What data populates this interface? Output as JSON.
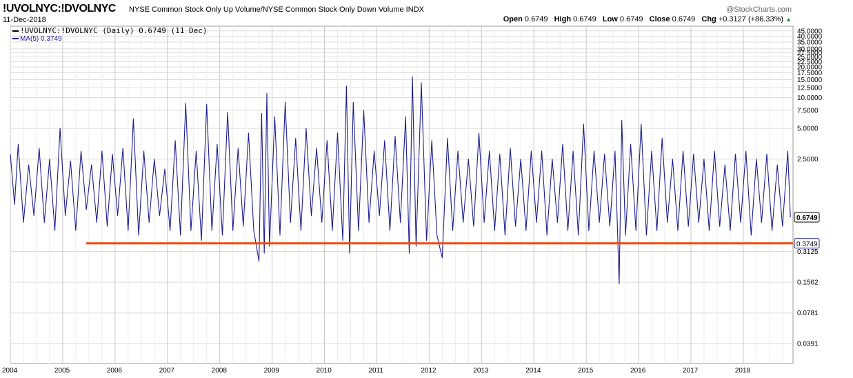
{
  "header": {
    "symbol": "!UVOLNYC:!DVOLNYC",
    "description": "NYSE Common Stock Only Up Volume/NYSE Common Stock Only Down Volume  INDX",
    "brand": "@StockCharts.com",
    "date": "11-Dec-2018",
    "open_label": "Open",
    "open": "0.6749",
    "high_label": "High",
    "high": "0.6749",
    "low_label": "Low",
    "low": "0.6749",
    "close_label": "Close",
    "close": "0.6749",
    "chg_label": "Chg",
    "chg": "+0.3127 (+86.33%)",
    "chg_arrow": "▲"
  },
  "legend": {
    "series": "!UVOLNYC:!DVOLNYC (Daily) 0.6749 (11 Dec)",
    "ma": "MA(5) 0.3749"
  },
  "colors": {
    "series": "#1c1c8f",
    "hline": "#ff4500",
    "grid": "#dcdcdc",
    "ma_tag": "#1c1c8f"
  },
  "chart_data": {
    "type": "line",
    "yscale": "log",
    "ylim": [
      0.025,
      50
    ],
    "xlim": [
      2004,
      2018.95
    ],
    "x_tick_labels": [
      "2004",
      "2005",
      "2006",
      "2007",
      "2008",
      "2009",
      "2010",
      "2011",
      "2012",
      "2013",
      "2014",
      "2015",
      "2016",
      "2017",
      "2018"
    ],
    "y_tick_labels": [
      {
        "label": "45.0000",
        "v": 45
      },
      {
        "label": "40.0000",
        "v": 40
      },
      {
        "label": "35.0000",
        "v": 35
      },
      {
        "label": "30.0000",
        "v": 30
      },
      {
        "label": "27.5000",
        "v": 27.5
      },
      {
        "label": "25.0000",
        "v": 25
      },
      {
        "label": "22.5000",
        "v": 22.5
      },
      {
        "label": "20.0000",
        "v": 20
      },
      {
        "label": "17.5000",
        "v": 17.5
      },
      {
        "label": "15.0000",
        "v": 15
      },
      {
        "label": "12.5000",
        "v": 12.5
      },
      {
        "label": "10.0000",
        "v": 10
      },
      {
        "label": "7.5000",
        "v": 7.5
      },
      {
        "label": "5.0000",
        "v": 5
      },
      {
        "label": "2.5000",
        "v": 2.5
      },
      {
        "label": "0.3125",
        "v": 0.3125
      },
      {
        "label": "0.1562",
        "v": 0.1562
      },
      {
        "label": "0.0781",
        "v": 0.0781
      },
      {
        "label": "0.0391",
        "v": 0.0391
      }
    ],
    "last_value_label": "0.6749",
    "last_value": 0.6749,
    "ma_value_label": "0.3749",
    "ma_value": 0.3749,
    "horizontal_line": {
      "y": 0.375,
      "x_start": 2005.45,
      "x_end": 2018.95
    },
    "series": [
      {
        "name": "!UVOLNYC:!DVOLNYC (Daily)",
        "points": [
          [
            2004.0,
            2.8
          ],
          [
            2004.08,
            0.9
          ],
          [
            2004.15,
            3.5
          ],
          [
            2004.25,
            0.6
          ],
          [
            2004.35,
            2.2
          ],
          [
            2004.45,
            0.7
          ],
          [
            2004.55,
            3.2
          ],
          [
            2004.65,
            0.6
          ],
          [
            2004.75,
            2.5
          ],
          [
            2004.85,
            0.5
          ],
          [
            2004.95,
            5.0
          ],
          [
            2005.05,
            0.7
          ],
          [
            2005.15,
            2.4
          ],
          [
            2005.25,
            0.5
          ],
          [
            2005.35,
            3.0
          ],
          [
            2005.45,
            0.8
          ],
          [
            2005.55,
            2.2
          ],
          [
            2005.65,
            0.6
          ],
          [
            2005.75,
            3.0
          ],
          [
            2005.85,
            0.55
          ],
          [
            2005.95,
            2.8
          ],
          [
            2006.05,
            0.7
          ],
          [
            2006.15,
            3.2
          ],
          [
            2006.25,
            0.5
          ],
          [
            2006.35,
            6.2
          ],
          [
            2006.45,
            0.45
          ],
          [
            2006.55,
            3.0
          ],
          [
            2006.65,
            0.6
          ],
          [
            2006.75,
            2.5
          ],
          [
            2006.85,
            0.7
          ],
          [
            2006.95,
            2.0
          ],
          [
            2007.05,
            0.5
          ],
          [
            2007.15,
            3.8
          ],
          [
            2007.25,
            0.45
          ],
          [
            2007.35,
            8.8
          ],
          [
            2007.45,
            0.5
          ],
          [
            2007.55,
            3.0
          ],
          [
            2007.65,
            0.4
          ],
          [
            2007.75,
            8.6
          ],
          [
            2007.85,
            0.5
          ],
          [
            2007.95,
            3.5
          ],
          [
            2008.05,
            0.45
          ],
          [
            2008.15,
            7.2
          ],
          [
            2008.25,
            0.5
          ],
          [
            2008.35,
            3.2
          ],
          [
            2008.45,
            0.55
          ],
          [
            2008.55,
            4.5
          ],
          [
            2008.65,
            0.5
          ],
          [
            2008.75,
            0.25
          ],
          [
            2008.8,
            7.0
          ],
          [
            2008.85,
            0.3
          ],
          [
            2008.9,
            11.0
          ],
          [
            2008.95,
            0.35
          ],
          [
            2009.05,
            6.5
          ],
          [
            2009.15,
            0.45
          ],
          [
            2009.25,
            9.0
          ],
          [
            2009.35,
            0.6
          ],
          [
            2009.45,
            4.0
          ],
          [
            2009.55,
            0.5
          ],
          [
            2009.65,
            5.0
          ],
          [
            2009.75,
            0.7
          ],
          [
            2009.85,
            3.2
          ],
          [
            2009.95,
            0.6
          ],
          [
            2010.05,
            3.8
          ],
          [
            2010.15,
            0.5
          ],
          [
            2010.25,
            4.5
          ],
          [
            2010.35,
            0.4
          ],
          [
            2010.42,
            13.0
          ],
          [
            2010.48,
            0.3
          ],
          [
            2010.55,
            9.0
          ],
          [
            2010.65,
            0.5
          ],
          [
            2010.75,
            7.5
          ],
          [
            2010.85,
            0.6
          ],
          [
            2010.95,
            3.0
          ],
          [
            2011.05,
            0.7
          ],
          [
            2011.15,
            3.8
          ],
          [
            2011.25,
            0.5
          ],
          [
            2011.35,
            4.2
          ],
          [
            2011.45,
            0.6
          ],
          [
            2011.55,
            6.5
          ],
          [
            2011.62,
            0.3
          ],
          [
            2011.68,
            16.0
          ],
          [
            2011.75,
            0.35
          ],
          [
            2011.85,
            14.0
          ],
          [
            2011.95,
            0.4
          ],
          [
            2012.05,
            3.8
          ],
          [
            2012.15,
            0.45
          ],
          [
            2012.25,
            0.27
          ],
          [
            2012.35,
            4.0
          ],
          [
            2012.45,
            0.5
          ],
          [
            2012.55,
            3.0
          ],
          [
            2012.65,
            0.6
          ],
          [
            2012.75,
            2.5
          ],
          [
            2012.85,
            0.55
          ],
          [
            2012.95,
            4.5
          ],
          [
            2013.05,
            0.6
          ],
          [
            2013.15,
            3.0
          ],
          [
            2013.25,
            0.5
          ],
          [
            2013.35,
            2.8
          ],
          [
            2013.45,
            0.45
          ],
          [
            2013.55,
            3.2
          ],
          [
            2013.65,
            0.55
          ],
          [
            2013.75,
            2.5
          ],
          [
            2013.85,
            0.5
          ],
          [
            2013.95,
            3.0
          ],
          [
            2014.05,
            0.6
          ],
          [
            2014.15,
            3.0
          ],
          [
            2014.25,
            0.45
          ],
          [
            2014.35,
            2.5
          ],
          [
            2014.45,
            0.6
          ],
          [
            2014.55,
            3.5
          ],
          [
            2014.65,
            0.5
          ],
          [
            2014.75,
            3.0
          ],
          [
            2014.85,
            0.45
          ],
          [
            2014.95,
            5.5
          ],
          [
            2015.05,
            0.5
          ],
          [
            2015.15,
            3.0
          ],
          [
            2015.25,
            0.6
          ],
          [
            2015.35,
            2.8
          ],
          [
            2015.45,
            0.55
          ],
          [
            2015.55,
            3.0
          ],
          [
            2015.63,
            0.15
          ],
          [
            2015.68,
            6.0
          ],
          [
            2015.75,
            0.45
          ],
          [
            2015.85,
            3.5
          ],
          [
            2015.95,
            0.5
          ],
          [
            2016.05,
            5.5
          ],
          [
            2016.15,
            0.45
          ],
          [
            2016.25,
            3.0
          ],
          [
            2016.35,
            0.5
          ],
          [
            2016.45,
            4.0
          ],
          [
            2016.55,
            0.6
          ],
          [
            2016.65,
            2.5
          ],
          [
            2016.75,
            0.5
          ],
          [
            2016.85,
            3.0
          ],
          [
            2016.95,
            0.55
          ],
          [
            2017.05,
            2.8
          ],
          [
            2017.15,
            0.6
          ],
          [
            2017.25,
            2.5
          ],
          [
            2017.35,
            0.5
          ],
          [
            2017.45,
            3.0
          ],
          [
            2017.55,
            0.55
          ],
          [
            2017.65,
            2.2
          ],
          [
            2017.75,
            0.5
          ],
          [
            2017.85,
            2.8
          ],
          [
            2017.95,
            0.6
          ],
          [
            2018.05,
            3.0
          ],
          [
            2018.15,
            0.45
          ],
          [
            2018.25,
            2.5
          ],
          [
            2018.35,
            0.6
          ],
          [
            2018.45,
            2.8
          ],
          [
            2018.55,
            0.5
          ],
          [
            2018.65,
            2.2
          ],
          [
            2018.75,
            0.55
          ],
          [
            2018.85,
            3.0
          ],
          [
            2018.9,
            0.675
          ]
        ]
      }
    ]
  }
}
